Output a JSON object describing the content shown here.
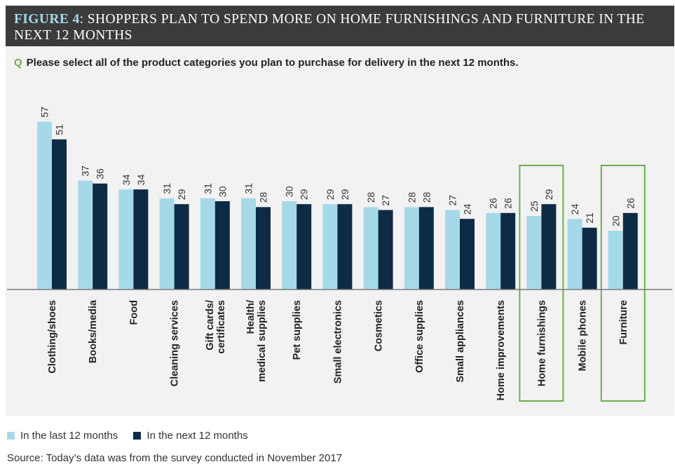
{
  "figure": {
    "prefix": "FIGURE 4",
    "title": ": SHOPPERS PLAN TO SPEND MORE ON HOME FURNISHINGS AND FURNITURE IN THE NEXT 12 MONTHS"
  },
  "question": {
    "mark": "Q",
    "text": "Please select all of the product categories you plan to purchase for delivery in the next 12 months."
  },
  "colors": {
    "last": "#a6d9e8",
    "next": "#0d2b45",
    "highlight": "#6ab04c"
  },
  "chart_data": {
    "type": "bar",
    "title": "Shoppers plan to spend more on home furnishings and furniture in the next 12 months",
    "xlabel": "",
    "ylabel": "",
    "ylim": [
      0,
      60
    ],
    "categories": [
      "Clothing/shoes",
      "Books/media",
      "Food",
      "Cleaning services",
      [
        "Gift cards/",
        "certificates"
      ],
      [
        "Health/",
        "medical supplies"
      ],
      "Pet supplies",
      "Small electronics",
      "Cosmetics",
      "Office supplies",
      "Small appliances",
      "Home improvements",
      "Home furnishings",
      "Mobile phones",
      "Furniture"
    ],
    "highlighted": [
      "Home furnishings",
      "Furniture"
    ],
    "series": [
      {
        "name": "In the last 12 months",
        "values": [
          57,
          37,
          34,
          31,
          31,
          31,
          30,
          29,
          28,
          28,
          27,
          26,
          25,
          24,
          20
        ]
      },
      {
        "name": "In the next 12 months",
        "values": [
          51,
          36,
          34,
          29,
          30,
          28,
          29,
          29,
          27,
          28,
          24,
          26,
          29,
          21,
          26
        ]
      }
    ],
    "legend": "bottom-left"
  },
  "source": "Source: Today’s data was from the survey conducted in November 2017"
}
